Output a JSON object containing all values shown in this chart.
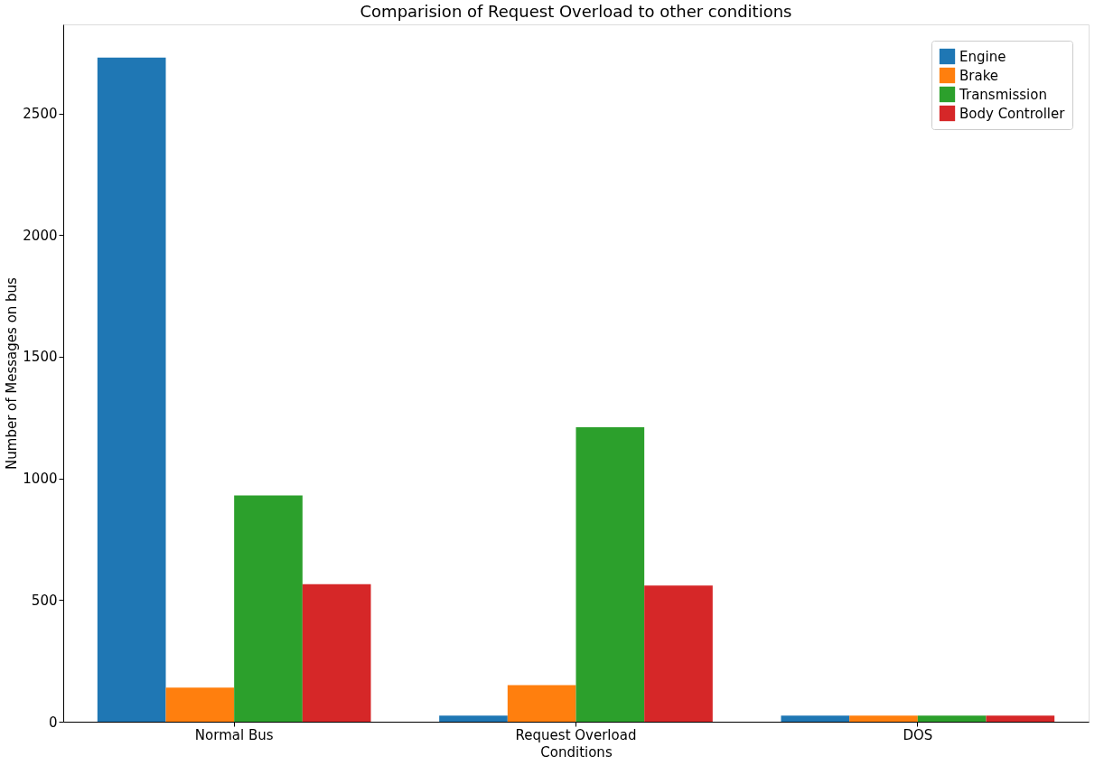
{
  "chart_data": {
    "type": "bar",
    "title": "Comparision of Request Overload to other conditions",
    "xlabel": "Conditions",
    "ylabel": "Number of Messages on bus",
    "categories": [
      "Normal Bus",
      "Request Overload",
      "DOS"
    ],
    "series": [
      {
        "name": "Engine",
        "color": "#1f77b4",
        "values": [
          2730,
          25,
          25
        ]
      },
      {
        "name": "Brake",
        "color": "#ff7f0e",
        "values": [
          140,
          150,
          25
        ]
      },
      {
        "name": "Transmission",
        "color": "#2ca02c",
        "values": [
          930,
          1210,
          25
        ]
      },
      {
        "name": "Body Controller",
        "color": "#d62728",
        "values": [
          565,
          560,
          25
        ]
      }
    ],
    "ylim": [
      0,
      2866
    ],
    "yticks": [
      0,
      500,
      1000,
      1500,
      2000,
      2500
    ],
    "grid": false,
    "legend": "top right"
  }
}
